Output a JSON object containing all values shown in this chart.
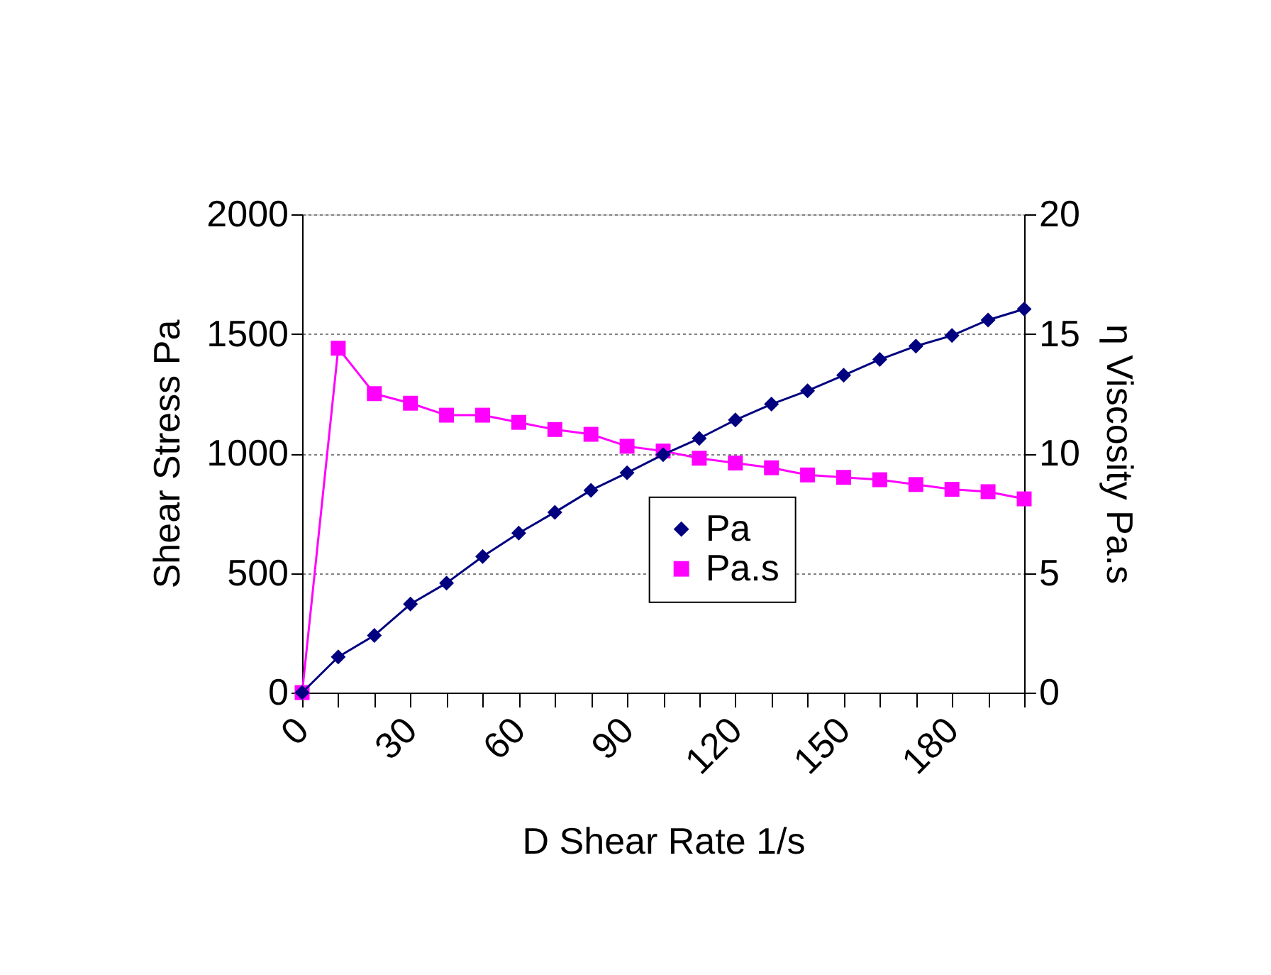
{
  "chart_data": {
    "type": "line",
    "xlabel": "D Shear Rate 1/s",
    "ylabel": "Shear Stress Pa",
    "y2label": "η Viscosity Pa.s",
    "x": [
      0,
      10,
      20,
      30,
      40,
      50,
      60,
      70,
      80,
      90,
      100,
      110,
      120,
      130,
      140,
      150,
      160,
      170,
      180,
      190,
      200
    ],
    "series": [
      {
        "name": "Pa",
        "color": "#000080",
        "marker": "diamond",
        "values": [
          0,
          149,
          239,
          370,
          458,
          569,
          667,
          754,
          846,
          919,
          995,
          1063,
          1140,
          1206,
          1262,
          1327,
          1393,
          1449,
          1493,
          1558,
          1604
        ]
      },
      {
        "name": "Pa.s",
        "color": "#ff00ff",
        "marker": "square",
        "axis": "y2",
        "values": [
          0,
          14.4,
          12.5,
          12.1,
          11.6,
          11.6,
          11.3,
          11.0,
          10.8,
          10.3,
          10.1,
          9.8,
          9.6,
          9.4,
          9.1,
          9.0,
          8.9,
          8.7,
          8.5,
          8.4,
          8.1
        ]
      }
    ],
    "xlim": [
      0,
      200
    ],
    "xticks": [
      0,
      {
        "value": 10,
        "label": null
      },
      {
        "value": 20,
        "label": null
      },
      30,
      {
        "value": 40,
        "label": null
      },
      {
        "value": 50,
        "label": null
      },
      60,
      {
        "value": 70,
        "label": null
      },
      {
        "value": 80,
        "label": null
      },
      90,
      {
        "value": 100,
        "label": null
      },
      {
        "value": 110,
        "label": null
      },
      120,
      {
        "value": 130,
        "label": null
      },
      {
        "value": 140,
        "label": null
      },
      150,
      {
        "value": 160,
        "label": null
      },
      {
        "value": 170,
        "label": null
      },
      180,
      {
        "value": 190,
        "label": null
      },
      {
        "value": 200,
        "label": null
      }
    ],
    "ylim": [
      0,
      2000
    ],
    "yticks": [
      0,
      500,
      1000,
      1500,
      2000
    ],
    "y2lim": [
      0,
      20
    ],
    "y2ticks": [
      0,
      5,
      10,
      15,
      20
    ],
    "grid": "y",
    "legend": "center"
  }
}
